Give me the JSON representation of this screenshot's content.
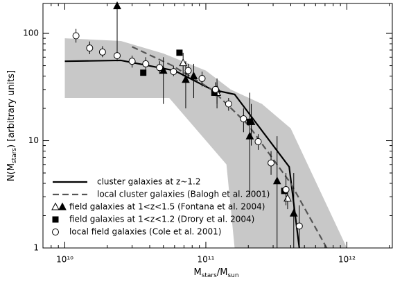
{
  "chart_data": {
    "type": "scatter",
    "x_label": [
      "M",
      "stars",
      "/M",
      "sun"
    ],
    "y_label": [
      "N(M",
      "stars",
      ") [arbitrary units]"
    ],
    "xlog": true,
    "ylog": true,
    "xlim": [
      7000000000.0,
      2100000000000.0
    ],
    "ylim": [
      1,
      190
    ],
    "xticks": [
      {
        "value": 10000000000.0,
        "label": "10¹⁰"
      },
      {
        "value": 100000000000.0,
        "label": "10¹¹"
      },
      {
        "value": 1000000000000.0,
        "label": "10¹²"
      }
    ],
    "yticks": [
      1,
      10,
      100
    ],
    "band": {
      "color": "#c8c8c8",
      "x": [
        10000000000.0,
        25000000000.0,
        50000000000.0,
        100000000000.0,
        150000000000.0,
        250000000000.0,
        400000000000.0,
        1000000000000.0
      ],
      "upper": [
        90,
        85,
        65,
        45,
        30,
        22,
        13,
        1
      ],
      "x_lower": [
        10000000000.0,
        55000000000.0,
        140000000000.0,
        160000000000.0,
        1000000000000.0
      ],
      "lower": [
        25,
        25,
        6,
        1,
        1
      ]
    },
    "series": [
      {
        "name": "cluster galaxies at z~1.2",
        "kind": "line",
        "dash": false,
        "color": "#000000",
        "x": [
          10000000000.0,
          25000000000.0,
          60000000000.0,
          110000000000.0,
          160000000000.0,
          390000000000.0,
          460000000000.0
        ],
        "values": [
          55,
          56,
          45,
          30,
          27,
          5.7,
          1
        ]
      },
      {
        "name": "local cluster galaxies (Balogh et al. 2001)",
        "kind": "line",
        "dash": true,
        "color": "#555555",
        "x": [
          30000000000.0,
          58000000000.0,
          110000000000.0,
          200000000000.0,
          400000000000.0,
          720000000000.0
        ],
        "values": [
          75,
          50,
          30,
          14,
          4,
          1
        ]
      },
      {
        "name": "field galaxies at 1<z<1.5 (Fontana et al. 2004)",
        "kind": "markers",
        "marker": "triangle",
        "color": "#000000",
        "x": [
          23500000000.0,
          50000000000.0,
          72000000000.0,
          82000000000.0,
          120000000000.0,
          205000000000.0,
          210000000000.0,
          320000000000.0,
          420000000000.0,
          69000000000.0,
          120000000000.0,
          380000000000.0
        ],
        "values": [
          180,
          45,
          37,
          40,
          30,
          11,
          15,
          4.2,
          2.1,
          53,
          28,
          2.9
        ],
        "lower": [
          55,
          22,
          20,
          25,
          20,
          3,
          9,
          1,
          1,
          40,
          22,
          2.3
        ],
        "upper": [
          190,
          60,
          55,
          52,
          38,
          28,
          22,
          11,
          5,
          66,
          35,
          3.6
        ],
        "filled": [
          true,
          true,
          true,
          true,
          true,
          true,
          true,
          true,
          true,
          false,
          false,
          false
        ]
      },
      {
        "name": "field galaxies at 1<z<1.2 (Drory et al. 2004)",
        "kind": "markers",
        "marker": "square",
        "color": "#000000",
        "x": [
          36000000000.0,
          65000000000.0,
          115000000000.0,
          205000000000.0,
          360000000000.0
        ],
        "values": [
          43,
          66,
          28,
          15,
          3.4
        ],
        "filled": [
          true,
          true,
          true,
          true,
          true
        ]
      },
      {
        "name": "local field galaxies (Cole et al. 2001)",
        "kind": "markers",
        "marker": "circle",
        "color": "#000000",
        "x": [
          12000000000.0,
          15000000000.0,
          18500000000.0,
          23500000000.0,
          30000000000.0,
          37500000000.0,
          47000000000.0,
          59000000000.0,
          75000000000.0,
          94000000000.0,
          117000000000.0,
          145000000000.0,
          185000000000.0,
          235000000000.0,
          290000000000.0,
          370000000000.0,
          460000000000.0
        ],
        "values": [
          95,
          73,
          67,
          62,
          55,
          52,
          48,
          44,
          45,
          38,
          30,
          22,
          16,
          9.8,
          6.2,
          3.5,
          1.6
        ],
        "lower": [
          82,
          64,
          60,
          56,
          48,
          46,
          42,
          40,
          38,
          32,
          26,
          19,
          12,
          8.2,
          4.8,
          2.5,
          1
        ],
        "upper": [
          110,
          84,
          76,
          70,
          62,
          60,
          55,
          50,
          52,
          44,
          35,
          25,
          20,
          11.5,
          8,
          5,
          2.5
        ],
        "filled": [
          false,
          false,
          false,
          false,
          false,
          false,
          false,
          false,
          false,
          false,
          false,
          false,
          false,
          false,
          false,
          false,
          false
        ]
      }
    ]
  }
}
